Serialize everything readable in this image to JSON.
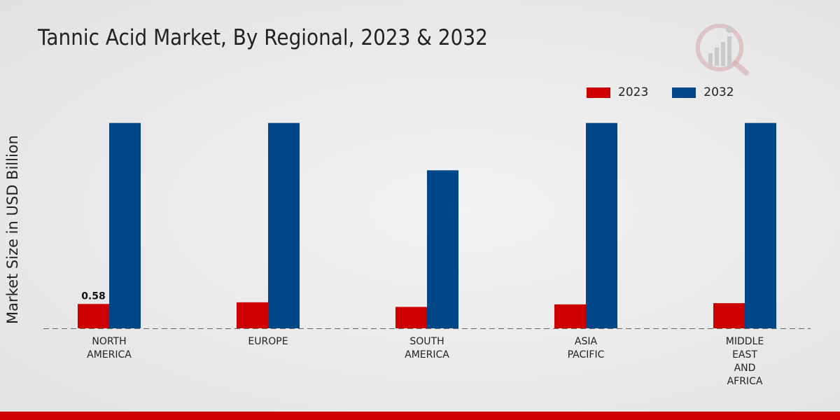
{
  "title": "Tannic Acid Market, By Regional, 2023 & 2032",
  "chart_data": {
    "type": "bar",
    "title": "Tannic Acid Market, By Regional, 2023 & 2032",
    "xlabel": "",
    "ylabel": "Market Size in USD Billion",
    "categories": [
      [
        "NORTH",
        "AMERICA"
      ],
      [
        "EUROPE"
      ],
      [
        "SOUTH",
        "AMERICA"
      ],
      [
        "ASIA",
        "PACIFIC"
      ],
      [
        "MIDDLE",
        "EAST",
        "AND",
        "AFRICA"
      ]
    ],
    "series": [
      {
        "name": "2023",
        "color": "#cc0000",
        "values": [
          0.58,
          0.62,
          0.51,
          0.57,
          0.6
        ]
      },
      {
        "name": "2032",
        "color": "#00478a",
        "values": [
          4.9,
          4.9,
          3.77,
          4.9,
          4.9
        ]
      }
    ],
    "data_labels": [
      {
        "series": 0,
        "index": 0,
        "text": "0.58"
      }
    ],
    "ylim": [
      0,
      7.5
    ],
    "grid": false,
    "legend_position": "top-right"
  }
}
